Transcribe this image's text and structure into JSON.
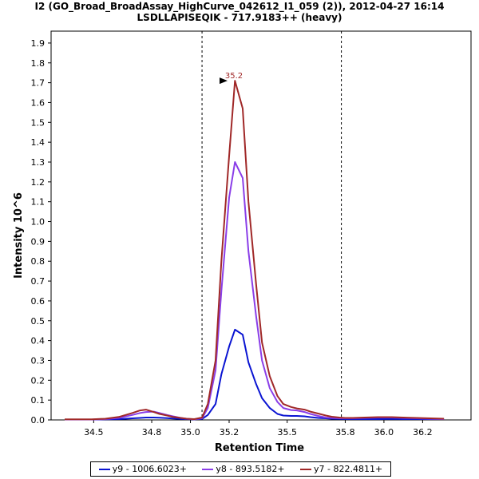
{
  "chart_data": {
    "type": "line",
    "title": "I2 (GO_Broad_BroadAssay_HighCurve_042612_I1_059 (2)), 2012-04-27 16:14",
    "subtitle": "LSDLLAPISEQIK - 717.9183++ (heavy)",
    "xlabel": "Retention Time",
    "ylabel": "Intensity 10^6",
    "xlim": [
      34.28,
      36.45
    ],
    "ylim": [
      0.0,
      1.96
    ],
    "xticks": [
      34.5,
      34.8,
      35.0,
      35.2,
      35.5,
      35.8,
      36.0,
      36.2
    ],
    "xtick_labels": [
      "34.5",
      "34.8",
      "35.0",
      "35.2",
      "35.5",
      "35.8",
      "36.0",
      "36.2"
    ],
    "yticks": [
      0.0,
      0.1,
      0.2,
      0.3,
      0.4,
      0.5,
      0.6,
      0.7,
      0.8,
      0.9,
      1.0,
      1.1,
      1.2,
      1.3,
      1.4,
      1.5,
      1.6,
      1.7,
      1.8,
      1.9
    ],
    "ytick_labels": [
      "0.0",
      "0.1",
      "0.2",
      "0.3",
      "0.4",
      "0.5",
      "0.6",
      "0.7",
      "0.8",
      "0.9",
      "1.0",
      "1.1",
      "1.2",
      "1.3",
      "1.4",
      "1.5",
      "1.6",
      "1.7",
      "1.8",
      "1.9"
    ],
    "boundaries": [
      35.06,
      35.78
    ],
    "peak_annotation": {
      "label": "35.2",
      "x": 35.2,
      "y": 1.71
    },
    "x": [
      34.35,
      34.42,
      34.49,
      34.56,
      34.63,
      34.7,
      34.74,
      34.77,
      34.81,
      34.84,
      34.88,
      34.91,
      34.95,
      34.98,
      35.02,
      35.06,
      35.09,
      35.13,
      35.16,
      35.2,
      35.23,
      35.27,
      35.3,
      35.34,
      35.37,
      35.41,
      35.45,
      35.48,
      35.52,
      35.55,
      35.59,
      35.62,
      35.66,
      35.7,
      35.73,
      35.77,
      35.8,
      35.84,
      35.9,
      35.97,
      36.04,
      36.1,
      36.17,
      36.24,
      36.31
    ],
    "series": [
      {
        "name": "y9 - 1006.6023+",
        "color": "#0a14d2",
        "values": [
          0.002,
          0.002,
          0.002,
          0.003,
          0.004,
          0.008,
          0.01,
          0.012,
          0.012,
          0.011,
          0.009,
          0.007,
          0.005,
          0.004,
          0.003,
          0.005,
          0.025,
          0.08,
          0.23,
          0.37,
          0.455,
          0.43,
          0.29,
          0.18,
          0.11,
          0.06,
          0.03,
          0.022,
          0.02,
          0.02,
          0.018,
          0.014,
          0.01,
          0.008,
          0.006,
          0.005,
          0.004,
          0.004,
          0.004,
          0.004,
          0.005,
          0.004,
          0.004,
          0.004,
          0.004
        ]
      },
      {
        "name": "y8 - 893.5182+",
        "color": "#8a3ee8",
        "values": [
          0.002,
          0.002,
          0.002,
          0.004,
          0.01,
          0.025,
          0.035,
          0.04,
          0.042,
          0.035,
          0.025,
          0.018,
          0.01,
          0.006,
          0.003,
          0.008,
          0.06,
          0.25,
          0.65,
          1.12,
          1.3,
          1.22,
          0.85,
          0.52,
          0.3,
          0.16,
          0.09,
          0.06,
          0.05,
          0.048,
          0.04,
          0.03,
          0.02,
          0.012,
          0.01,
          0.008,
          0.008,
          0.008,
          0.01,
          0.012,
          0.012,
          0.01,
          0.008,
          0.006,
          0.004
        ]
      },
      {
        "name": "y7 - 822.4811+",
        "color": "#a02828",
        "values": [
          0.003,
          0.003,
          0.003,
          0.006,
          0.015,
          0.035,
          0.048,
          0.052,
          0.04,
          0.03,
          0.022,
          0.015,
          0.01,
          0.006,
          0.004,
          0.012,
          0.08,
          0.3,
          0.8,
          1.33,
          1.71,
          1.57,
          1.1,
          0.68,
          0.39,
          0.22,
          0.12,
          0.08,
          0.065,
          0.058,
          0.052,
          0.042,
          0.032,
          0.022,
          0.016,
          0.012,
          0.01,
          0.01,
          0.012,
          0.014,
          0.014,
          0.012,
          0.01,
          0.008,
          0.006
        ]
      }
    ]
  }
}
